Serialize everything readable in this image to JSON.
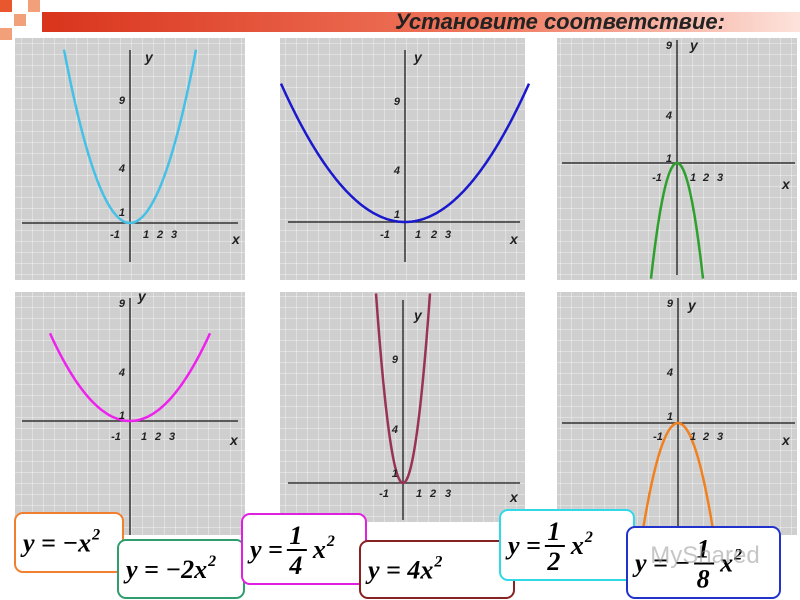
{
  "title": "Установите соответствие:",
  "watermark": "MyShared",
  "panels": [
    {
      "y_label": "у",
      "x_label": "х",
      "y_ticks": [
        "9",
        "4",
        "1"
      ],
      "x_ticks": [
        "-1",
        "1",
        "2",
        "3"
      ]
    },
    {
      "y_label": "у",
      "x_label": "х",
      "y_ticks": [
        "9",
        "4",
        "1"
      ],
      "x_ticks": [
        "-1",
        "1",
        "2",
        "3"
      ]
    },
    {
      "y_label": "у",
      "x_label": "х",
      "y_ticks": [
        "9",
        "4",
        "1"
      ],
      "x_ticks": [
        "-1",
        "1",
        "2",
        "3"
      ]
    },
    {
      "y_label": "у",
      "x_label": "х",
      "y_ticks": [
        "9",
        "4",
        "1"
      ],
      "x_ticks": [
        "-1",
        "1",
        "2",
        "3"
      ]
    },
    {
      "y_label": "у",
      "x_label": "х",
      "y_ticks": [
        "9",
        "4",
        "1"
      ],
      "x_ticks": [
        "-1",
        "1",
        "2",
        "3"
      ]
    },
    {
      "y_label": "у",
      "x_label": "х",
      "y_ticks": [
        "9",
        "4",
        "1"
      ],
      "x_ticks": [
        "-1",
        "1",
        "2",
        "3"
      ]
    }
  ],
  "formulas": [
    {
      "lead": "y = −x",
      "exp": "2"
    },
    {
      "lead": "y = −2x",
      "exp": "2"
    },
    {
      "lead": "y =",
      "num": "1",
      "den": "4",
      "tail": "x",
      "exp": "2"
    },
    {
      "lead": "y = 4x",
      "exp": "2"
    },
    {
      "lead": "y =",
      "num": "1",
      "den": "2",
      "tail": "x",
      "exp": "2"
    },
    {
      "lead": "y = −",
      "num": "1",
      "den": "8",
      "tail": "x",
      "exp": "2"
    }
  ]
}
